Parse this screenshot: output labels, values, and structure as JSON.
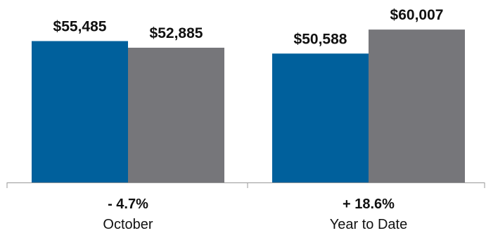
{
  "chart_data": {
    "type": "bar",
    "categories": [
      "October",
      "Year to Date"
    ],
    "changes": [
      "- 4.7%",
      "+ 18.6%"
    ],
    "series": [
      {
        "values": [
          55485,
          50588
        ],
        "labels": [
          "$55,485",
          "$50,588"
        ],
        "color": "#00609c"
      },
      {
        "values": [
          52885,
          60007
        ],
        "labels": [
          "$52,885",
          "$60,007"
        ],
        "color": "#76767a"
      }
    ],
    "ylim": [
      0,
      65000
    ],
    "grid": false,
    "legend": "none",
    "axis_color": "#999999"
  }
}
